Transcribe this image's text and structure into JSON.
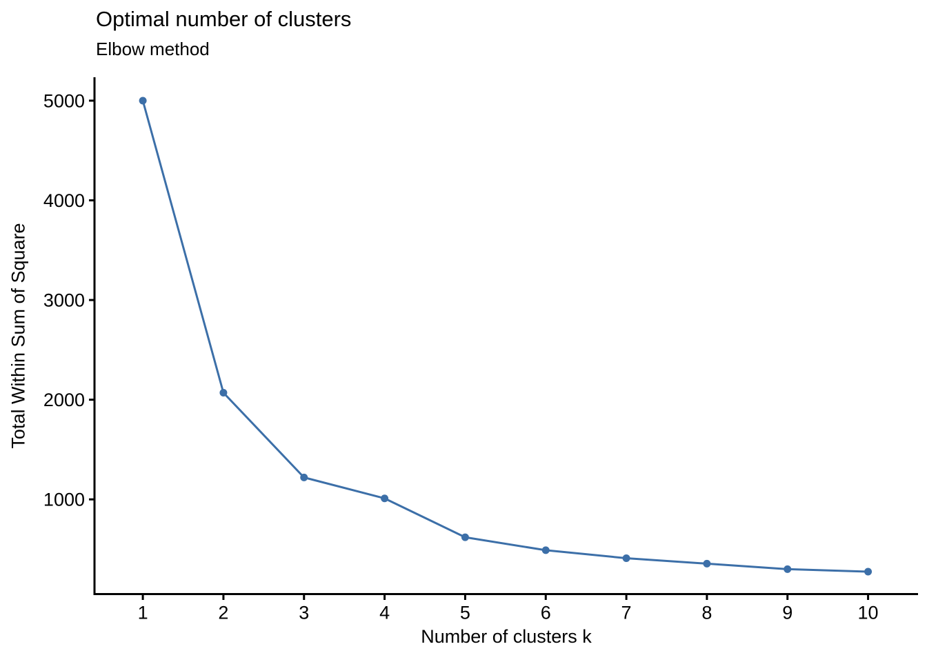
{
  "chart_data": {
    "type": "line",
    "title": "Optimal number of clusters",
    "subtitle": "Elbow method",
    "xlabel": "Number of clusters k",
    "ylabel": "Total Within Sum of Square",
    "x": [
      1,
      2,
      3,
      4,
      5,
      6,
      7,
      8,
      9,
      10
    ],
    "y": [
      5000,
      2070,
      1220,
      1010,
      620,
      490,
      410,
      355,
      300,
      275
    ],
    "x_tick_labels": [
      "1",
      "2",
      "3",
      "4",
      "5",
      "6",
      "7",
      "8",
      "9",
      "10"
    ],
    "y_tick_values": [
      1000,
      2000,
      3000,
      4000,
      5000
    ],
    "y_tick_labels": [
      "1000",
      "2000",
      "3000",
      "4000",
      "5000"
    ],
    "xlim": [
      0.4,
      10.62
    ],
    "ylim": [
      50,
      5235
    ],
    "grid": false,
    "legend": "none",
    "line_color": "#3C6FA8",
    "marker_color": "#3C6FA8",
    "axis_color": "#000000",
    "background_color": "#FFFFFF"
  }
}
